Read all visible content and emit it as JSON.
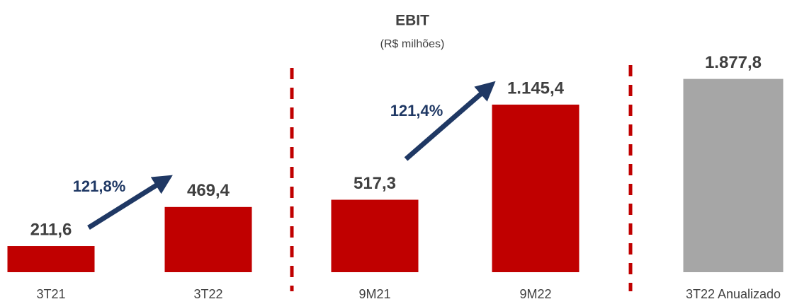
{
  "chart_data": [
    {
      "type": "bar",
      "title": "EBIT",
      "subtitle": "(R$ milhões)",
      "categories": [
        "3T21",
        "3T22",
        "9M21",
        "9M22"
      ],
      "values": [
        211.6,
        469.4,
        517.3,
        1145.4
      ],
      "value_labels": [
        "211,6",
        "469,4",
        "517,3",
        "1.145,4"
      ],
      "color": "#c00000",
      "ylim": [
        39,
        1500
      ],
      "annotations": [
        "121,8%",
        "121,4%"
      ]
    },
    {
      "type": "bar",
      "categories": [
        "3T22 Anualizado"
      ],
      "values": [
        1877.8
      ],
      "value_labels": [
        "1.877,8"
      ],
      "color": "#a6a6a6",
      "ylim": [
        0,
        2150
      ]
    }
  ]
}
